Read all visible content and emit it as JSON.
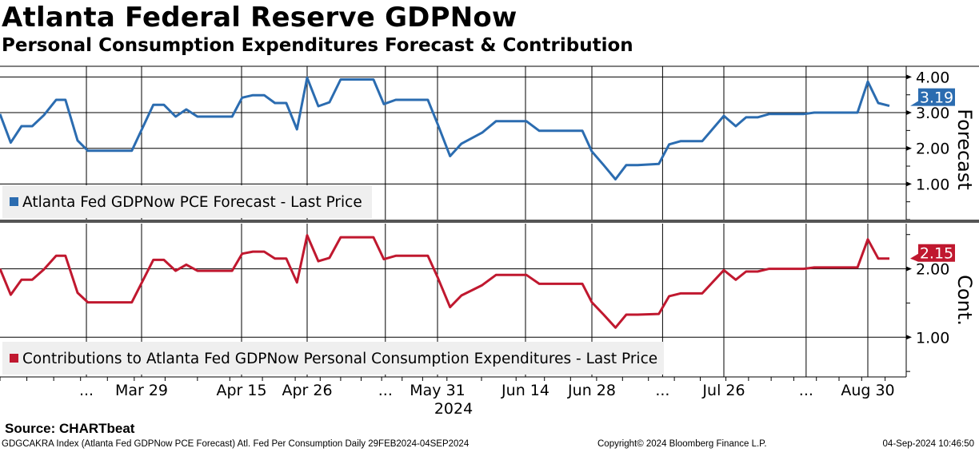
{
  "title": "Atlanta Federal Reserve GDPNow",
  "subtitle": "Personal Consumption Expenditures Forecast & Contribution",
  "source": "Source: CHARTbeat",
  "footer": {
    "left": "GDGCAKRA Index (Atlanta Fed GDPNow PCE Forecast) Atl. Fed Per Consumption  Daily 29FEB2024-04SEP2024",
    "center": "Copyright© 2024 Bloomberg Finance L.P.",
    "right": "04-Sep-2024 10:46:50"
  },
  "chart_data": [
    {
      "type": "line",
      "panel": "top",
      "axis_title": "Forecast",
      "legend": "Atlanta Fed GDPNow PCE Forecast - Last Price",
      "color": "#2b6cb0",
      "ylim": [
        0,
        4.3
      ],
      "yticks": [
        {
          "v": 4,
          "label": "4.00"
        },
        {
          "v": 3,
          "label": "3.00"
        },
        {
          "v": 2,
          "label": "2.00"
        },
        {
          "v": 1,
          "label": "1.00"
        }
      ],
      "last_value": "3.19",
      "x_days": [
        0,
        2.2,
        4.4,
        6.6,
        9,
        11.5,
        13.4,
        15.9,
        18,
        27,
        31,
        32.8,
        34.8,
        36.6,
        38.5,
        44.4,
        46.1,
        47.9,
        49.8,
        51.6,
        53.5,
        55.3,
        57,
        60,
        63,
        66,
        74.8,
        77.6,
        80.8,
        89.4,
        92,
        94,
        95.8,
        99.1,
        101.3,
        106.2,
        108.9,
        118,
        120,
        122.5,
        125,
        127.3,
        129.7,
        134.2,
        136.4,
        138.8,
        143.4,
        148,
        150.9,
        153.4,
        156.2,
        159,
        167.4,
        170,
        180.5,
        183,
        185.4,
        188
      ],
      "values": [
        2.96,
        2.16,
        2.62,
        2.62,
        2.93,
        3.36,
        3.36,
        2.22,
        1.93,
        1.93,
        3.22,
        3.22,
        2.89,
        3.09,
        2.89,
        2.89,
        3.42,
        3.49,
        3.49,
        3.27,
        3.27,
        2.53,
        3.98,
        3.18,
        3.29,
        3.93,
        3.93,
        3.24,
        3.36,
        3.36,
        2.69,
        1.78,
        2.13,
        2.44,
        2.76,
        2.76,
        2.49,
        2.49,
        1.91,
        1.53,
        1.13,
        1.53,
        1.53,
        1.56,
        2.11,
        2.2,
        2.2,
        2.91,
        2.62,
        2.87,
        2.87,
        2.96,
        2.96,
        3.0,
        3.0,
        3.87,
        3.27,
        3.19
      ]
    },
    {
      "type": "line",
      "panel": "bottom",
      "axis_title": "Cont.",
      "legend": "Contributions to Atlanta Fed GDPNow Personal Consumption Expenditures - Last Price",
      "color": "#c0182f",
      "ylim": [
        0.42,
        2.66
      ],
      "yticks": [
        {
          "v": 2,
          "label": "2.00"
        },
        {
          "v": 1,
          "label": "1.00"
        }
      ],
      "last_value": "2.15",
      "x_days": [
        0,
        2.2,
        4.4,
        6.6,
        9,
        11.5,
        13.4,
        15.9,
        18,
        27,
        31,
        32.8,
        34.8,
        36.6,
        38.5,
        44.4,
        46.1,
        47.9,
        49.8,
        51.6,
        53.5,
        55.3,
        57,
        60,
        63,
        66,
        74.8,
        77.6,
        80.8,
        89.4,
        92,
        94,
        95.8,
        99.1,
        101.3,
        106.2,
        108.9,
        118,
        120,
        122.5,
        125,
        127.3,
        129.7,
        134.2,
        136.4,
        138.8,
        143.4,
        148,
        150.9,
        153.4,
        156.2,
        159,
        167.4,
        170,
        180.5,
        183,
        185.4,
        188
      ],
      "values": [
        2.0,
        1.62,
        1.84,
        1.84,
        1.99,
        2.19,
        2.19,
        1.65,
        1.51,
        1.51,
        2.13,
        2.13,
        1.97,
        2.06,
        1.97,
        1.97,
        2.22,
        2.25,
        2.25,
        2.15,
        2.15,
        1.8,
        2.49,
        2.11,
        2.16,
        2.46,
        2.46,
        2.14,
        2.19,
        2.19,
        1.88,
        1.44,
        1.61,
        1.76,
        1.91,
        1.91,
        1.78,
        1.78,
        1.51,
        1.33,
        1.14,
        1.33,
        1.33,
        1.34,
        1.6,
        1.64,
        1.64,
        1.98,
        1.84,
        1.96,
        1.96,
        2.0,
        2.0,
        2.02,
        2.02,
        2.43,
        2.15,
        2.15
      ]
    }
  ],
  "xaxis": {
    "ticks": [
      {
        "day": 17.7,
        "label": "..."
      },
      {
        "day": 29,
        "label": "Mar 29"
      },
      {
        "day": 46,
        "label": "Apr 15"
      },
      {
        "day": 57,
        "label": "Apr 26"
      },
      {
        "day": 78,
        "label": "..."
      },
      {
        "day": 92,
        "label": "May 31"
      },
      {
        "day": 106,
        "label": "Jun 14"
      },
      {
        "day": 120,
        "label": "Jun 28"
      },
      {
        "day": 135,
        "label": "..."
      },
      {
        "day": 148,
        "label": "Jul 26"
      },
      {
        "day": 168,
        "label": "..."
      },
      {
        "day": 183,
        "label": "Aug 30"
      }
    ],
    "year_label": "2024"
  }
}
